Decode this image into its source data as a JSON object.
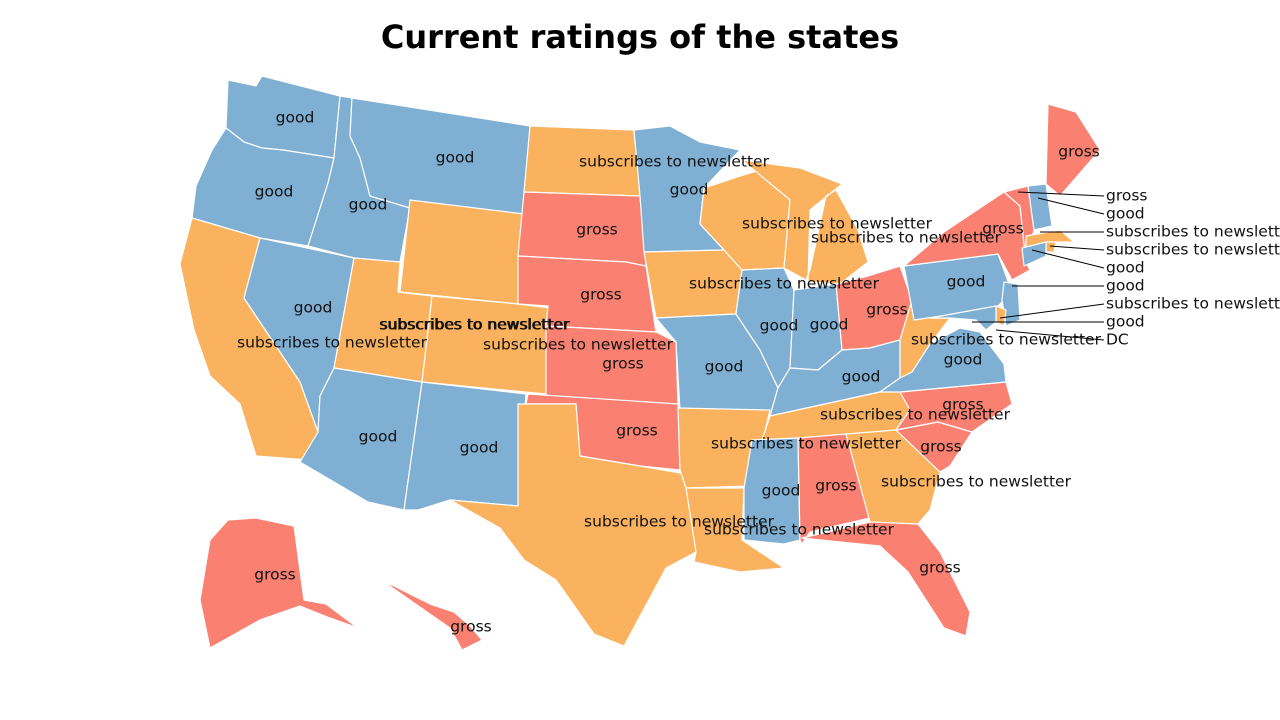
{
  "title": "Current ratings of the states",
  "colors": {
    "good": "#7fafd3",
    "gross": "#fa8072",
    "subscribes to newsletter": "#fbb25f"
  },
  "states": [
    {
      "code": "WA",
      "rating": "good"
    },
    {
      "code": "OR",
      "rating": "good"
    },
    {
      "code": "CA",
      "rating": "subscribes to newsletter"
    },
    {
      "code": "ID",
      "rating": "good"
    },
    {
      "code": "NV",
      "rating": "good"
    },
    {
      "code": "MT",
      "rating": "good"
    },
    {
      "code": "WY",
      "rating": "subscribes to newsletter"
    },
    {
      "code": "UT",
      "rating": "subscribes to newsletter"
    },
    {
      "code": "AZ",
      "rating": "good"
    },
    {
      "code": "CO",
      "rating": "subscribes to newsletter"
    },
    {
      "code": "NM",
      "rating": "good"
    },
    {
      "code": "ND",
      "rating": "subscribes to newsletter"
    },
    {
      "code": "SD",
      "rating": "gross"
    },
    {
      "code": "NE",
      "rating": "gross"
    },
    {
      "code": "KS",
      "rating": "gross"
    },
    {
      "code": "OK",
      "rating": "gross"
    },
    {
      "code": "TX",
      "rating": "subscribes to newsletter"
    },
    {
      "code": "MN",
      "rating": "good"
    },
    {
      "code": "IA",
      "rating": "subscribes to newsletter"
    },
    {
      "code": "MO",
      "rating": "good"
    },
    {
      "code": "AR",
      "rating": "subscribes to newsletter"
    },
    {
      "code": "LA",
      "rating": "subscribes to newsletter"
    },
    {
      "code": "WI",
      "rating": "subscribes to newsletter"
    },
    {
      "code": "MI",
      "rating": "subscribes to newsletter"
    },
    {
      "code": "IL",
      "rating": "good"
    },
    {
      "code": "IN",
      "rating": "good"
    },
    {
      "code": "OH",
      "rating": "gross"
    },
    {
      "code": "KY",
      "rating": "good"
    },
    {
      "code": "TN",
      "rating": "subscribes to newsletter"
    },
    {
      "code": "MS",
      "rating": "good"
    },
    {
      "code": "AL",
      "rating": "gross"
    },
    {
      "code": "GA",
      "rating": "subscribes to newsletter"
    },
    {
      "code": "FL",
      "rating": "gross"
    },
    {
      "code": "SC",
      "rating": "gross"
    },
    {
      "code": "NC",
      "rating": "gross"
    },
    {
      "code": "VA",
      "rating": "good"
    },
    {
      "code": "WV",
      "rating": "subscribes to newsletter"
    },
    {
      "code": "PA",
      "rating": "good"
    },
    {
      "code": "NY",
      "rating": "gross"
    },
    {
      "code": "ME",
      "rating": "gross"
    },
    {
      "code": "AK",
      "rating": "gross"
    },
    {
      "code": "HI",
      "rating": "gross"
    },
    {
      "code": "VT",
      "rating": "gross"
    },
    {
      "code": "NH",
      "rating": "good"
    },
    {
      "code": "MA",
      "rating": "subscribes to newsletter"
    },
    {
      "code": "RI",
      "rating": "subscribes to newsletter"
    },
    {
      "code": "CT",
      "rating": "good"
    },
    {
      "code": "NJ",
      "rating": "good"
    },
    {
      "code": "DE",
      "rating": "subscribes to newsletter"
    },
    {
      "code": "MD",
      "rating": "good"
    },
    {
      "code": "DC",
      "rating": "DC"
    }
  ]
}
